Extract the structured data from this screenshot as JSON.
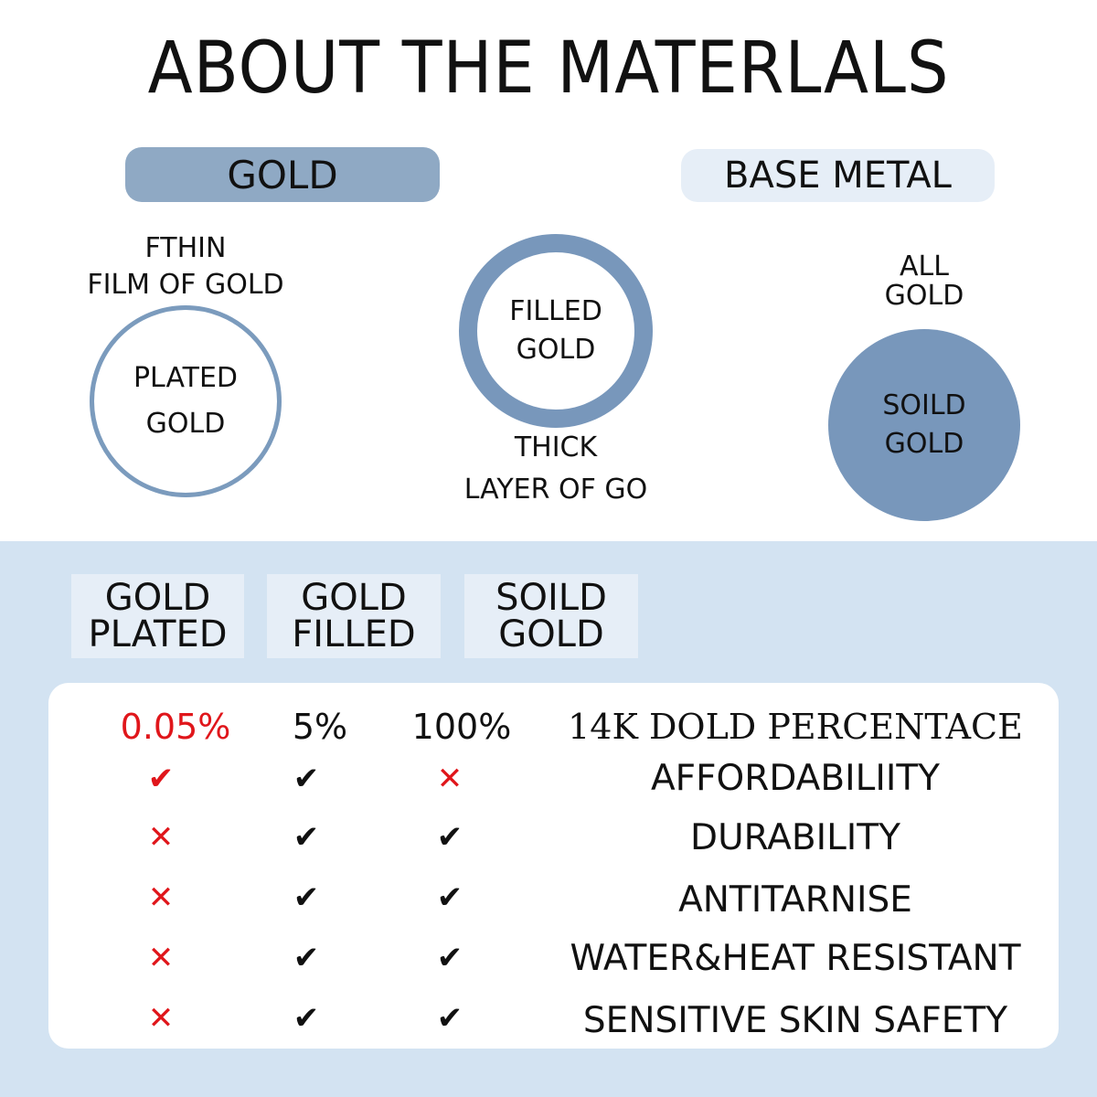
{
  "title": "ABOUT THE MATERLALS",
  "pills": {
    "gold": "GOLD",
    "base_metal": "BASE METAL"
  },
  "diagrams": [
    {
      "caption_lines": [
        "FTHIN",
        "FILM OF GOLD"
      ],
      "circle_lines": [
        "PLATED",
        "GOLD"
      ]
    },
    {
      "caption_lines": [
        "THICK",
        "LAYER OF GO"
      ],
      "circle_lines": [
        "FILLED",
        "GOLD"
      ]
    },
    {
      "caption_lines": [
        "ALL",
        "GOLD"
      ],
      "circle_lines": [
        "SOILD",
        "GOLD"
      ]
    }
  ],
  "colors": {
    "pill_gold": "#8fa9c4",
    "pill_base": "#e6eef7",
    "circle": "#7897bb",
    "band": "#d3e3f2",
    "red": "#e0161b"
  },
  "table": {
    "headers": [
      [
        "GOLD",
        "PLATED"
      ],
      [
        "GOLD",
        "FILLED"
      ],
      [
        "SOILD",
        "GOLD"
      ]
    ],
    "percentages": [
      "0.05%",
      "5%",
      "100%"
    ],
    "percentage_label": "14K DOLD PERCENTACE",
    "rows": [
      {
        "label": "AFFORDABILIITY",
        "marks": [
          "check-red",
          "check",
          "cross"
        ]
      },
      {
        "label": "DURABILITY",
        "marks": [
          "cross",
          "check",
          "check"
        ]
      },
      {
        "label": "ANTITARNISE",
        "marks": [
          "cross",
          "check",
          "check"
        ]
      },
      {
        "label": "WATER&HEAT RESISTANT",
        "marks": [
          "cross",
          "check",
          "check"
        ]
      },
      {
        "label": "SENSITIVE SKIN SAFETY",
        "marks": [
          "cross",
          "check",
          "check"
        ]
      }
    ]
  }
}
